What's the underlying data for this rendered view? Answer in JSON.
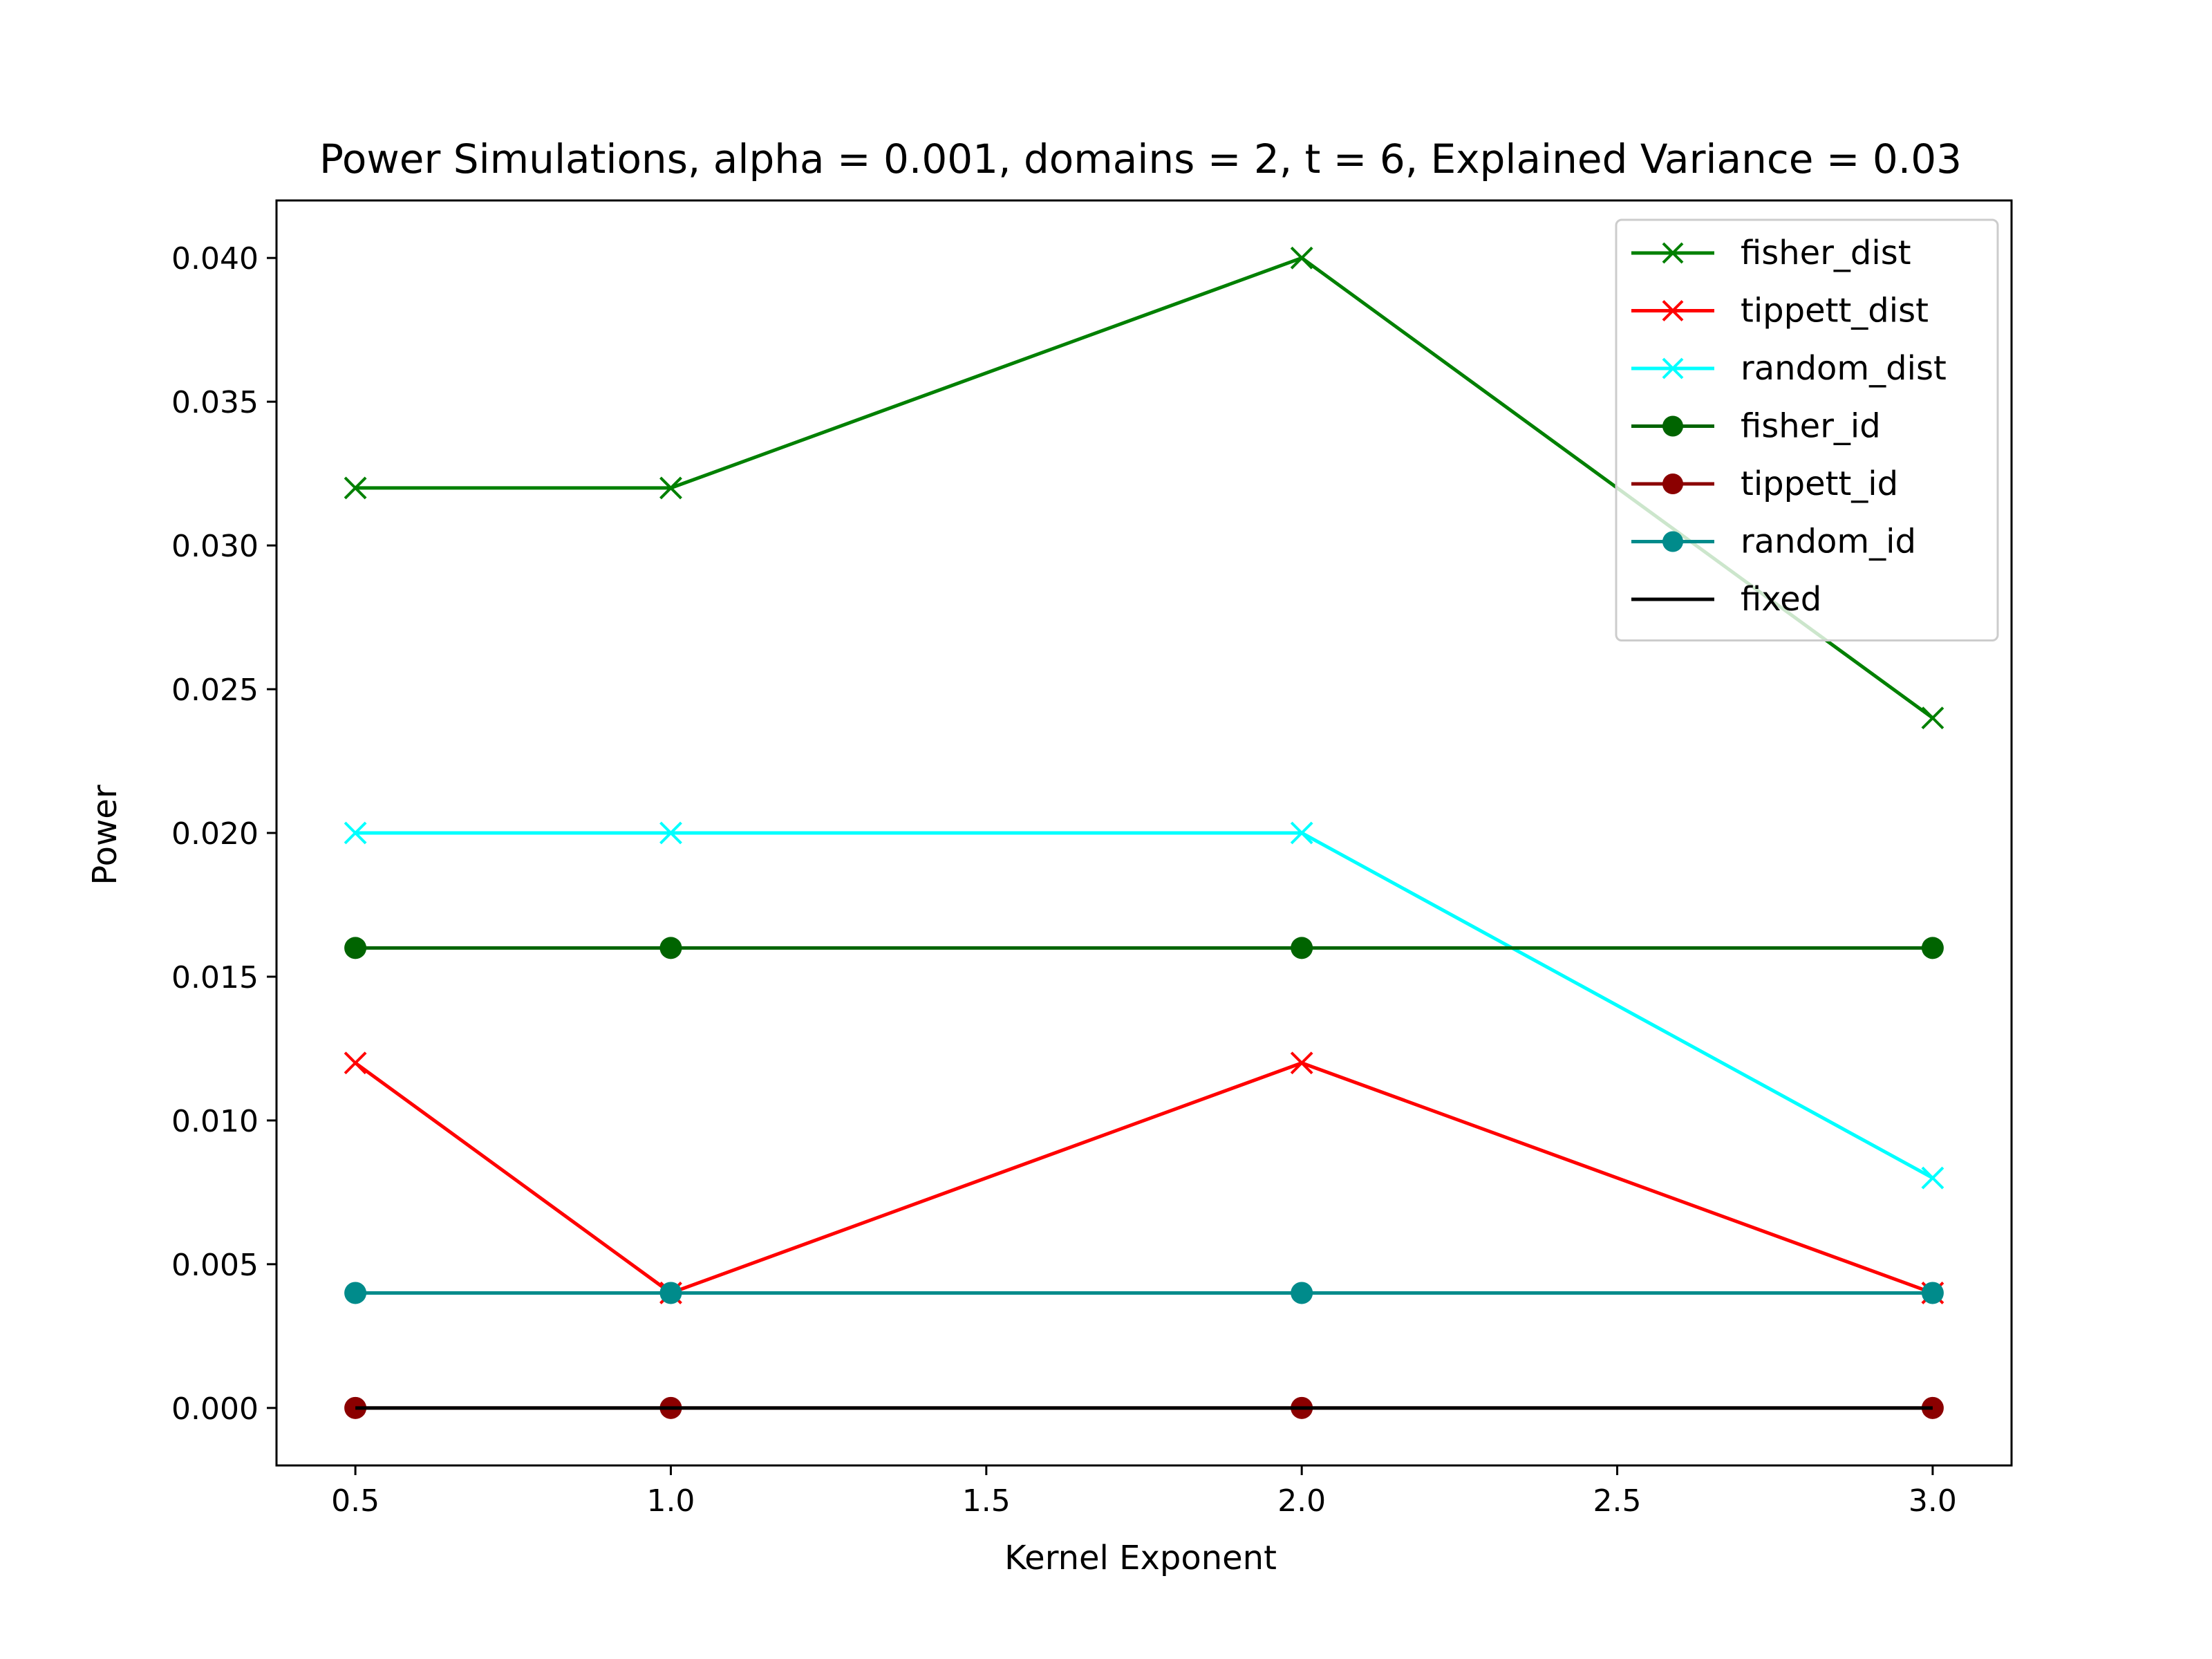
{
  "chart_data": {
    "type": "line",
    "title": "Power Simulations, alpha = 0.001, domains = 2, t = 6, Explained Variance = 0.03",
    "xlabel": "Kernel Exponent",
    "ylabel": "Power",
    "xlim": [
      0.375,
      3.125
    ],
    "ylim": [
      -0.002,
      0.042
    ],
    "xticks": [
      0.5,
      1.0,
      1.5,
      2.0,
      2.5,
      3.0
    ],
    "xtick_labels": [
      "0.5",
      "1.0",
      "1.5",
      "2.0",
      "2.5",
      "3.0"
    ],
    "yticks": [
      0.0,
      0.005,
      0.01,
      0.015,
      0.02,
      0.025,
      0.03,
      0.035,
      0.04
    ],
    "ytick_labels": [
      "0.000",
      "0.005",
      "0.010",
      "0.015",
      "0.020",
      "0.025",
      "0.030",
      "0.035",
      "0.040"
    ],
    "grid": false,
    "legend_position": "top-right",
    "x": [
      0.5,
      1.0,
      2.0,
      3.0
    ],
    "series": [
      {
        "name": "fisher_dist",
        "values": [
          0.032,
          0.032,
          0.04,
          0.024
        ],
        "color": "#008000",
        "marker": "x"
      },
      {
        "name": "tippett_dist",
        "values": [
          0.012,
          0.004,
          0.012,
          0.004
        ],
        "color": "#ff0000",
        "marker": "x"
      },
      {
        "name": "random_dist",
        "values": [
          0.02,
          0.02,
          0.02,
          0.008
        ],
        "color": "#00ffff",
        "marker": "x"
      },
      {
        "name": "fisher_id",
        "values": [
          0.016,
          0.016,
          0.016,
          0.016
        ],
        "color": "#006400",
        "marker": "o"
      },
      {
        "name": "tippett_id",
        "values": [
          0.0,
          0.0,
          0.0,
          0.0
        ],
        "color": "#8b0000",
        "marker": "o"
      },
      {
        "name": "random_id",
        "values": [
          0.004,
          0.004,
          0.004,
          0.004
        ],
        "color": "#008b8b",
        "marker": "o"
      },
      {
        "name": "fixed",
        "values": [
          0.0,
          0.0,
          0.0,
          0.0
        ],
        "color": "#000000",
        "marker": "none"
      }
    ]
  }
}
